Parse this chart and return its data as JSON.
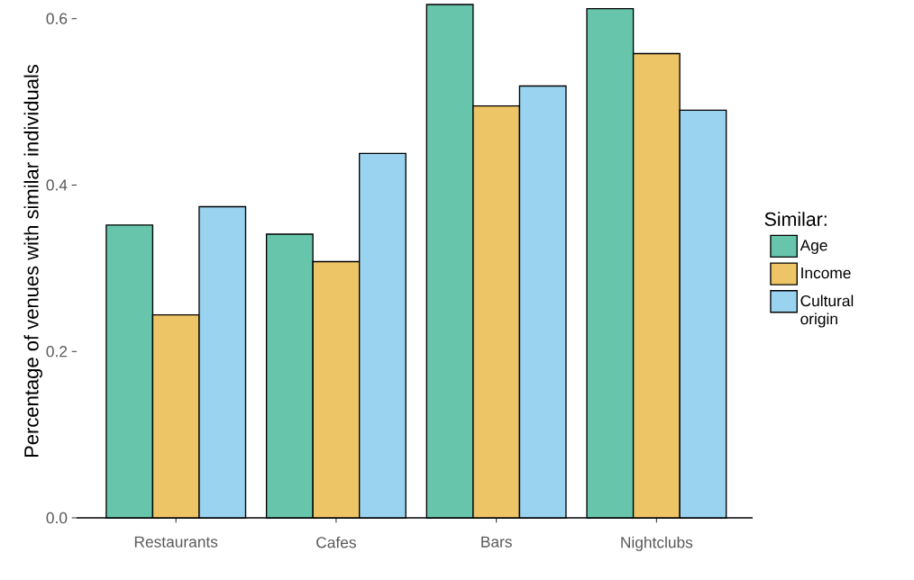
{
  "chart_data": {
    "type": "bar",
    "ylabel": "Percentage of venues with similar individuals",
    "legend_title": "Similar:",
    "categories": [
      "Restaurants",
      "Cafes",
      "Bars",
      "Nightclubs"
    ],
    "series": [
      {
        "name": "Age",
        "color": "#66c5ab",
        "values": [
          0.352,
          0.341,
          0.617,
          0.612
        ]
      },
      {
        "name": "Income",
        "color": "#eec566",
        "values": [
          0.244,
          0.308,
          0.495,
          0.558
        ]
      },
      {
        "name": "Cultural origin",
        "color": "#9ad3f0",
        "values": [
          0.374,
          0.438,
          0.519,
          0.49
        ]
      }
    ],
    "ylim": [
      0,
      0.617
    ],
    "yticks": [
      {
        "value": 0,
        "label": "0.0"
      },
      0.2,
      0.4,
      0.6
    ],
    "grid": false,
    "legend": "right"
  }
}
